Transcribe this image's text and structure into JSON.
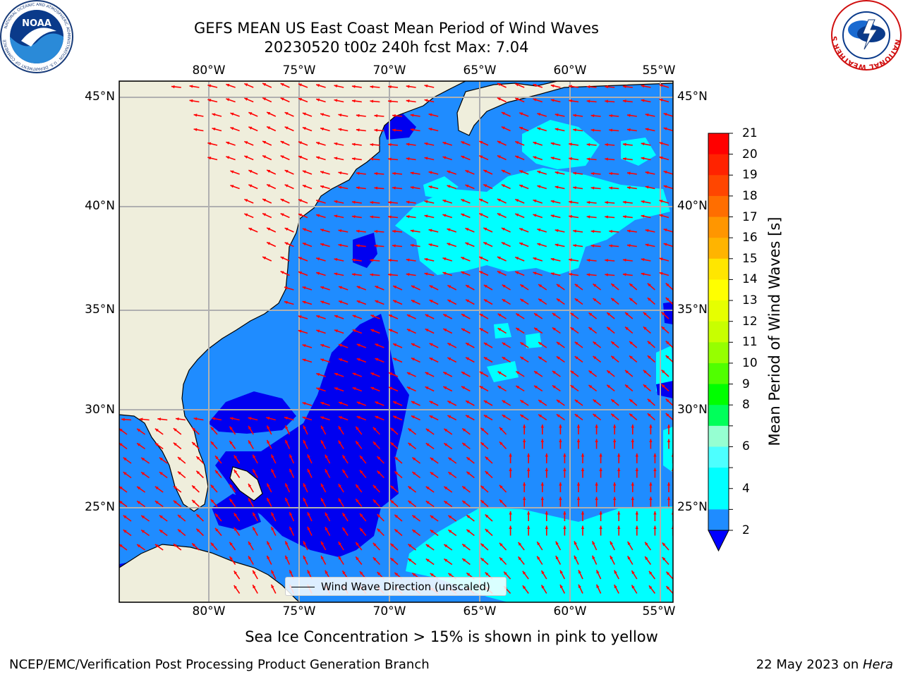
{
  "header": {
    "title_line1": "GEFS MEAN US East Coast Mean Period of Wind Waves",
    "title_line2": "20230520 t00z 240h fcst   Max: 7.04"
  },
  "logos": {
    "left": {
      "text": "NOAA",
      "ring_text": "NATIONAL OCEANIC AND ATMOSPHERIC ADMINISTRATION · U.S. DEPARTMENT OF COMMERCE"
    },
    "right": {
      "ring_text": "NATIONAL WEATHER SERVICE"
    }
  },
  "map": {
    "lon_labels": [
      "80°W",
      "75°W",
      "70°W",
      "65°W",
      "60°W",
      "55°W"
    ],
    "lat_labels": [
      "45°N",
      "40°N",
      "35°N",
      "30°N",
      "25°N"
    ],
    "legend": {
      "label": "Wind Wave Direction (unscaled)"
    },
    "colors": {
      "land": "#efeedc",
      "field_main": "#1f8cff",
      "field_low": "#0000f0",
      "field_cyan": "#00ffff",
      "arrows": "#ff0000",
      "grid": "#b0b0b0"
    }
  },
  "colorbar": {
    "label": "Mean Period of Wind Waves [s]",
    "ticks": [
      "21",
      "20",
      "19",
      "18",
      "17",
      "16",
      "15",
      "14",
      "13",
      "12",
      "11",
      "10",
      "9",
      "8",
      "7",
      "6",
      "5",
      "4",
      "3",
      "2"
    ],
    "label_ticks": [
      "21",
      "20",
      "19",
      "18",
      "17",
      "16",
      "15",
      "14",
      "13",
      "12",
      "11",
      "10",
      "9",
      "8",
      "6",
      "4",
      "2"
    ],
    "colors_top_to_bottom": [
      "#ff0000",
      "#ff2300",
      "#ff4600",
      "#ff6e00",
      "#ff9600",
      "#ffb400",
      "#ffe600",
      "#ffff00",
      "#e6ff00",
      "#c8ff00",
      "#96ff00",
      "#50ff00",
      "#00ff00",
      "#00ff5a",
      "#96ffd2",
      "#4dffff",
      "#00ffff",
      "#00ffff",
      "#1f8cff"
    ],
    "extend_color": "#0000ff"
  },
  "note": "Sea Ice Concentration > 15% is shown in pink to yellow",
  "footer": {
    "left": "NCEP/EMC/Verification Post Processing Product Generation Branch",
    "date": "22 May 2023 on ",
    "machine": "Hera"
  }
}
